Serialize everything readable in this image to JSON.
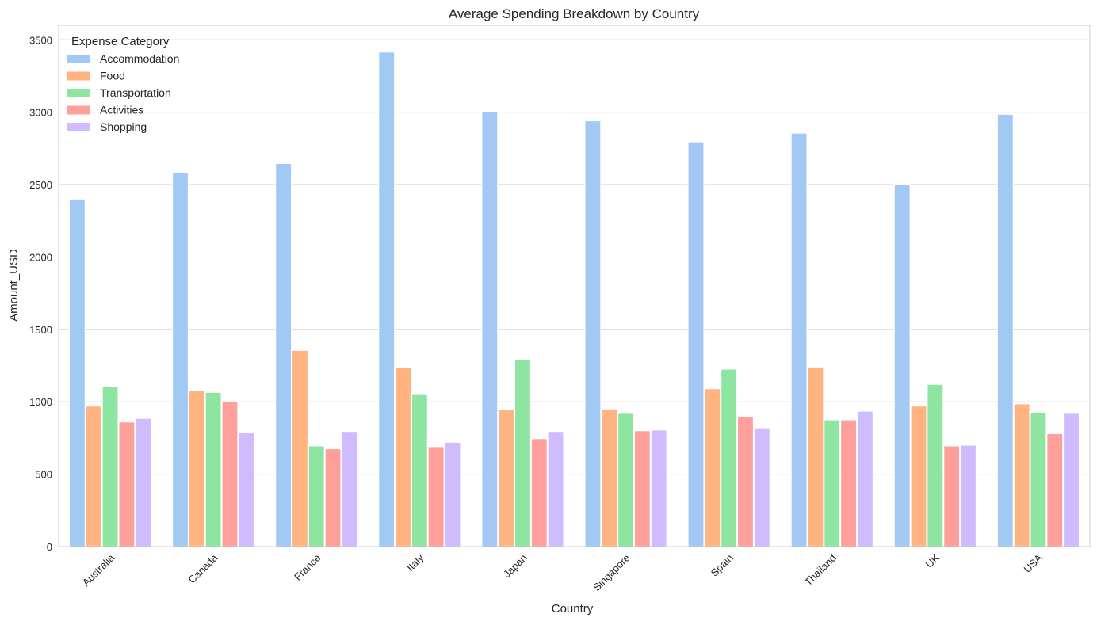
{
  "chart_data": {
    "type": "bar",
    "title": "Average Spending Breakdown by Country",
    "xlabel": "Country",
    "ylabel": "Amount_USD",
    "ylim": [
      0,
      3600
    ],
    "yticks": [
      0,
      500,
      1000,
      1500,
      2000,
      2500,
      3000,
      3500
    ],
    "grid": true,
    "legend_title": "Expense Category",
    "legend_position": "top-left",
    "categories": [
      "Australia",
      "Canada",
      "France",
      "Italy",
      "Japan",
      "Singapore",
      "Spain",
      "Thailand",
      "UK",
      "USA"
    ],
    "series": [
      {
        "name": "Accommodation",
        "color": "#a1c9f4",
        "values": [
          2400,
          2580,
          2645,
          3415,
          3005,
          2940,
          2795,
          2855,
          2500,
          2985
        ]
      },
      {
        "name": "Food",
        "color": "#ffb482",
        "values": [
          970,
          1075,
          1355,
          1235,
          945,
          950,
          1090,
          1240,
          970,
          985
        ]
      },
      {
        "name": "Transportation",
        "color": "#8de5a1",
        "values": [
          1105,
          1065,
          695,
          1050,
          1290,
          920,
          1225,
          875,
          1120,
          925
        ]
      },
      {
        "name": "Activities",
        "color": "#ff9f9b",
        "values": [
          860,
          1000,
          675,
          690,
          745,
          800,
          895,
          875,
          695,
          780
        ]
      },
      {
        "name": "Shopping",
        "color": "#d0bbff",
        "values": [
          885,
          785,
          795,
          720,
          795,
          805,
          820,
          935,
          700,
          920
        ]
      }
    ]
  }
}
